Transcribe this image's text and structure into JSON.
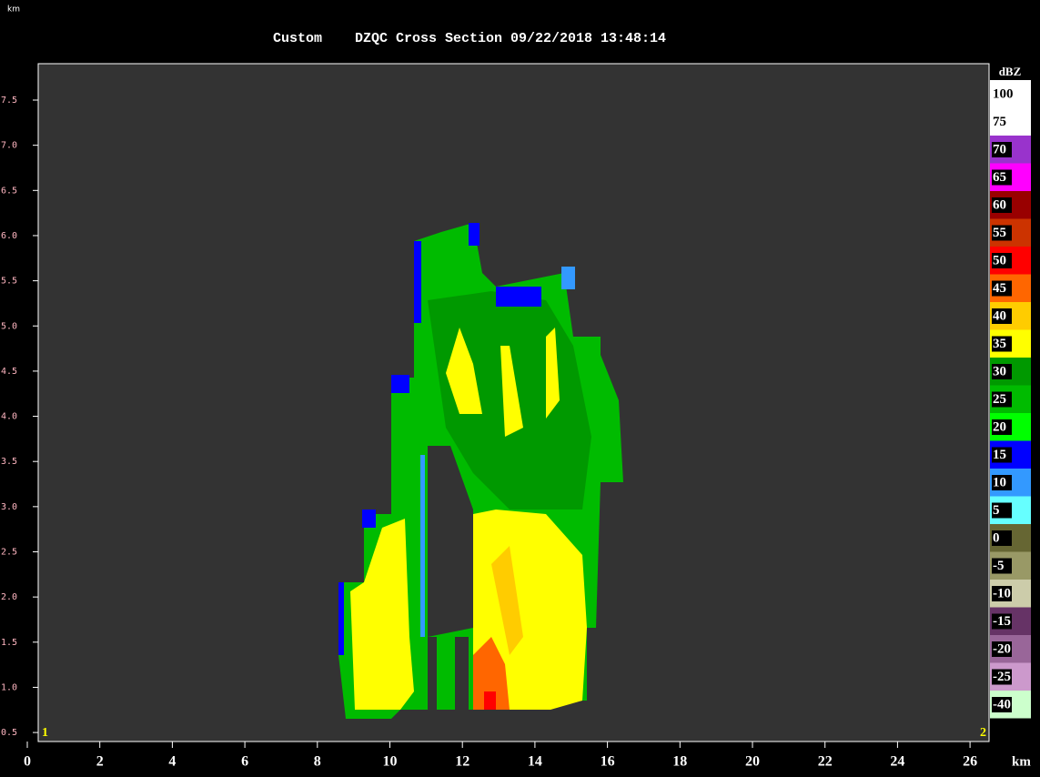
{
  "header": {
    "unit_label": "km",
    "product": "Custom",
    "title": "DZQC Cross Section 09/22/2018 13:48:14"
  },
  "y_axis": {
    "ticks": [
      "7.5",
      "7.0",
      "6.5",
      "6.0",
      "5.5",
      "5.0",
      "4.5",
      "4.0",
      "3.5",
      "3.0",
      "2.5",
      "2.0",
      "1.5",
      "1.0",
      "0.5"
    ]
  },
  "x_axis": {
    "ticks": [
      "0",
      "2",
      "4",
      "6",
      "8",
      "10",
      "12",
      "14",
      "16",
      "18",
      "20",
      "22",
      "24",
      "26"
    ],
    "unit": "km"
  },
  "endpoints": [
    "1",
    "2"
  ],
  "colorbar": {
    "title": "dBZ",
    "entries": [
      {
        "label": "100",
        "color": "#ffffff"
      },
      {
        "label": "75",
        "color": "#ffffff"
      },
      {
        "label": "70",
        "color": "#9933cc"
      },
      {
        "label": "65",
        "color": "#ff00ff"
      },
      {
        "label": "60",
        "color": "#990000"
      },
      {
        "label": "55",
        "color": "#cc3300"
      },
      {
        "label": "50",
        "color": "#ff0000"
      },
      {
        "label": "45",
        "color": "#ff6600"
      },
      {
        "label": "40",
        "color": "#ffcc00"
      },
      {
        "label": "35",
        "color": "#ffff00"
      },
      {
        "label": "30",
        "color": "#009900"
      },
      {
        "label": "25",
        "color": "#00bb00"
      },
      {
        "label": "20",
        "color": "#00ff00"
      },
      {
        "label": "15",
        "color": "#0000ff"
      },
      {
        "label": "10",
        "color": "#3399ff"
      },
      {
        "label": "5",
        "color": "#66ffff"
      },
      {
        "label": "0",
        "color": "#666633"
      },
      {
        "label": "-5",
        "color": "#999966"
      },
      {
        "label": "-10",
        "color": "#ccccaa"
      },
      {
        "label": "-15",
        "color": "#663366"
      },
      {
        "label": "-20",
        "color": "#996699"
      },
      {
        "label": "-25",
        "color": "#cc99cc"
      },
      {
        "label": "-40",
        "color": "#ccffcc"
      }
    ]
  }
}
